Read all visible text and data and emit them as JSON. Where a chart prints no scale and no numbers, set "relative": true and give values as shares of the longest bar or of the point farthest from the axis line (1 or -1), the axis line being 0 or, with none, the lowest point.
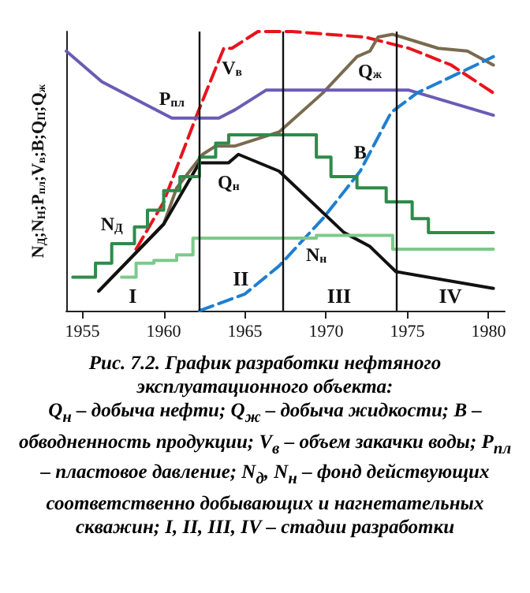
{
  "chart_data": {
    "type": "line",
    "relative": true,
    "title": "Рис. 7.2. График разработки нефтяного эксплуатационного объекта:",
    "ylabel": "N$_{Д}$;N$_{Н}$;P$_{пл}$;V$_{в}$;B;Q$_{П}$;Q$_{ж}$",
    "xlim": [
      1954,
      1981
    ],
    "xticks": [
      1955,
      1960,
      1965,
      1970,
      1975,
      1980
    ],
    "grid": false,
    "legend": false,
    "marker": "none",
    "series": [
      {
        "name": "V$_{в}$",
        "color": "#e8141c",
        "line_style": "dashed",
        "x": [
          1958.3,
          1960,
          1962.1,
          1963.7,
          1964.2,
          1965.8,
          1967.9,
          1972.4,
          1975.1,
          1977.7,
          1980.3
        ],
        "values": [
          0.22,
          0.39,
          0.71,
          0.94,
          0.94,
          1,
          1,
          0.98,
          0.94,
          0.88,
          0.78
        ]
      },
      {
        "name": "Q$_{ж}$",
        "color": "#7a6a4f",
        "x": [
          1956.0,
          1960,
          1960.8,
          1962.4,
          1963.2,
          1964.4,
          1967.1,
          1969.8,
          1971.9,
          1972.7,
          1973.2,
          1974.1,
          1976.9,
          1978.7,
          1980.3
        ],
        "values": [
          0.07,
          0.31,
          0.44,
          0.56,
          0.59,
          0.59,
          0.64,
          0.78,
          0.91,
          0.93,
          0.98,
          0.99,
          0.94,
          0.93,
          0.88
        ]
      },
      {
        "name": "P$_{пл}$",
        "color": "#6b5bb5",
        "x": [
          1954.0,
          1956.2,
          1960.5,
          1963.4,
          1964.4,
          1966.3,
          1975.1,
          1980.3
        ],
        "values": [
          0.93,
          0.82,
          0.69,
          0.69,
          0.72,
          0.79,
          0.79,
          0.7
        ]
      },
      {
        "name": "B",
        "color": "#1f7fd0",
        "line_style": "dashed",
        "x": [
          1962.2,
          1965,
          1967.1,
          1969.8,
          1972.1,
          1974,
          1975.6,
          1978.5,
          1980.3
        ],
        "values": [
          0,
          0.06,
          0.16,
          0.33,
          0.5,
          0.71,
          0.78,
          0.86,
          0.91
        ]
      },
      {
        "name": "Q$_{н}$",
        "color": "#111111",
        "x": [
          1956.0,
          1960,
          1962.2,
          1964.0,
          1964.6,
          1967.1,
          1971.1,
          1972.7,
          1974.3,
          1980.3
        ],
        "values": [
          0.07,
          0.31,
          0.53,
          0.53,
          0.56,
          0.5,
          0.28,
          0.23,
          0.14,
          0.08
        ]
      },
      {
        "name": "N$_{Д}$",
        "type": "step",
        "color": "#2e8b4a",
        "x": [
          1954.4,
          1955.8,
          1956.8,
          1958.2,
          1959.0,
          1960.0,
          1961.0,
          1962.2,
          1963.2,
          1964.0,
          1969.4,
          1970.3,
          1971.9,
          1973.7,
          1975.3,
          1976.3,
          1980.3
        ],
        "values": [
          0.12,
          0.17,
          0.24,
          0.3,
          0.36,
          0.43,
          0.48,
          0.55,
          0.6,
          0.63,
          0.55,
          0.48,
          0.44,
          0.39,
          0.33,
          0.28,
          0.28
        ]
      },
      {
        "name": "N$_{н}$",
        "type": "step",
        "color": "#7dc98a",
        "x": [
          1957.4,
          1958.3,
          1959.4,
          1960.8,
          1961.8,
          1969.4,
          1974.1,
          1980.3
        ],
        "values": [
          0.12,
          0.17,
          0.18,
          0.2,
          0.26,
          0.27,
          0.22,
          0.22
        ]
      }
    ],
    "ref_lines": [
      {
        "axis": "x",
        "value": 1962.2,
        "color": "#111111"
      },
      {
        "axis": "x",
        "value": 1967.3,
        "color": "#111111"
      },
      {
        "axis": "x",
        "value": 1974.3,
        "color": "#111111"
      }
    ],
    "annotations": [
      "I",
      "II",
      "III",
      "IV",
      "Q$_{н}$ – добыча нефти; Q$_{ж}$ – добыча жидкости; B – обводненность продукции; V$_{в}$ – объем закачки воды; P$_{пл}$ – пластовое давление; N$_{д}$, N$_{н}$ – фонд действующих соответственно добывающих и нагнетательных скважин; I, II, III, IV – стадии разработки"
    ]
  }
}
